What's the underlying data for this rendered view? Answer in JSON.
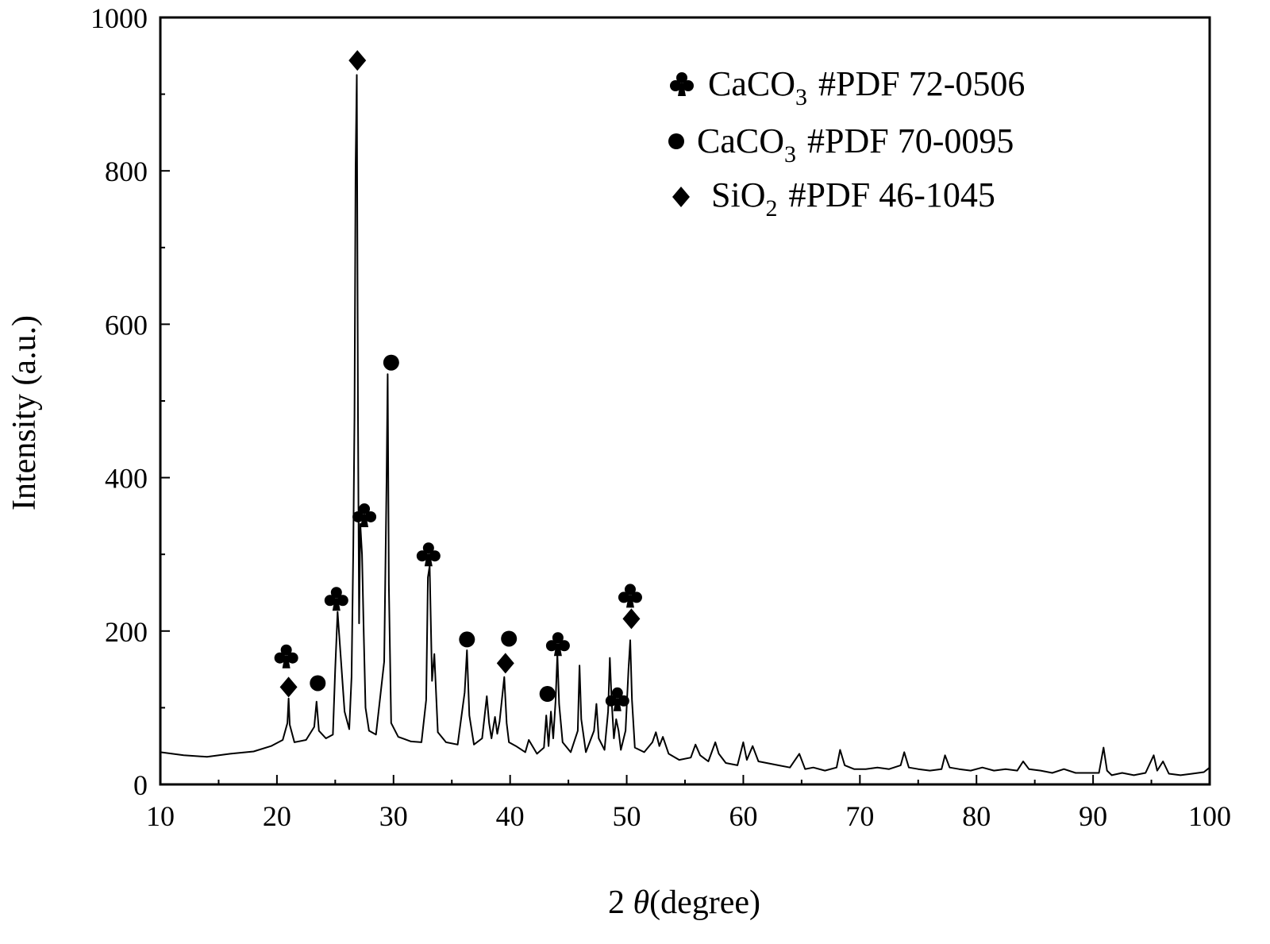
{
  "chart_data": {
    "type": "line",
    "title": "",
    "xlabel_prefix": "2 ",
    "xlabel_symbol": "θ",
    "xlabel_suffix": "(degree)",
    "ylabel": "Intensity (a.u.)",
    "xlim": [
      10,
      100
    ],
    "ylim": [
      0,
      1000
    ],
    "xticks": [
      10,
      20,
      30,
      40,
      50,
      60,
      70,
      80,
      90,
      100
    ],
    "yticks": [
      0,
      200,
      400,
      600,
      800,
      1000
    ],
    "grid": false,
    "legend_placement": "top-right",
    "line_color": "#000000",
    "legend": [
      {
        "marker": "club",
        "formula": "CaCO",
        "subscript": "3",
        "pdf": "#PDF 72-0506"
      },
      {
        "marker": "circle",
        "formula": "CaCO",
        "subscript": "3",
        "pdf": "#PDF 70-0095"
      },
      {
        "marker": "diamond",
        "formula": "SiO",
        "subscript": "2",
        "pdf": "#PDF 46-1045"
      }
    ],
    "series": [
      {
        "x": [
          10,
          12,
          14,
          16,
          18,
          19.5,
          20.5,
          20.9,
          21.0,
          21.1,
          21.5,
          22.5,
          23.2,
          23.4,
          23.6,
          24.2,
          24.8,
          25.0,
          25.2,
          25.8,
          26.2,
          26.4,
          26.55,
          26.65,
          26.75,
          26.85,
          26.95,
          27.05,
          27.15,
          27.3,
          27.45,
          27.6,
          27.9,
          28.5,
          29.2,
          29.4,
          29.5,
          29.6,
          29.8,
          30.4,
          31.5,
          32.4,
          32.8,
          32.95,
          33.1,
          33.3,
          33.5,
          33.8,
          34.5,
          35.5,
          36.1,
          36.3,
          36.5,
          36.9,
          37.6,
          38.0,
          38.2,
          38.4,
          38.7,
          38.9,
          39.1,
          39.5,
          39.7,
          39.9,
          40.5,
          41.3,
          41.6,
          42.3,
          42.9,
          43.1,
          43.3,
          43.5,
          43.7,
          43.9,
          44.05,
          44.2,
          44.5,
          45.2,
          45.8,
          45.95,
          46.1,
          46.5,
          47.2,
          47.4,
          47.6,
          48.1,
          48.4,
          48.55,
          48.7,
          48.9,
          49.1,
          49.3,
          49.5,
          49.9,
          50.15,
          50.3,
          50.45,
          50.7,
          51.5,
          52.2,
          52.5,
          52.8,
          53.1,
          53.6,
          54.5,
          55.5,
          55.9,
          56.3,
          57.0,
          57.6,
          57.9,
          58.5,
          59.5,
          60.0,
          60.3,
          60.8,
          61.3,
          62.0,
          63.0,
          64.0,
          64.8,
          65.3,
          66.0,
          67.0,
          68.0,
          68.3,
          68.7,
          69.5,
          70.5,
          71.5,
          72.5,
          73.5,
          73.8,
          74.2,
          75.0,
          76.0,
          77.0,
          77.3,
          77.7,
          78.5,
          79.5,
          80.5,
          81.5,
          82.5,
          83.5,
          84.0,
          84.5,
          85.5,
          86.5,
          87.5,
          88.5,
          89.5,
          90.5,
          90.9,
          91.2,
          91.6,
          92.5,
          93.5,
          94.5,
          95.2,
          95.5,
          96.0,
          96.5,
          97.5,
          98.5,
          99.5,
          100
        ],
        "y": [
          42,
          38,
          36,
          40,
          43,
          50,
          58,
          80,
          112,
          78,
          55,
          58,
          75,
          108,
          70,
          60,
          65,
          150,
          225,
          95,
          72,
          140,
          310,
          480,
          805,
          925,
          480,
          210,
          340,
          300,
          195,
          100,
          70,
          65,
          160,
          395,
          535,
          260,
          80,
          62,
          56,
          55,
          110,
          270,
          285,
          135,
          170,
          68,
          55,
          52,
          120,
          175,
          90,
          52,
          60,
          115,
          80,
          60,
          88,
          66,
          82,
          140,
          80,
          55,
          50,
          42,
          58,
          40,
          48,
          90,
          50,
          95,
          60,
          110,
          170,
          105,
          55,
          42,
          70,
          155,
          85,
          42,
          70,
          105,
          60,
          45,
          95,
          165,
          110,
          60,
          85,
          70,
          45,
          70,
          150,
          188,
          110,
          48,
          42,
          55,
          68,
          50,
          62,
          40,
          32,
          35,
          52,
          38,
          30,
          55,
          40,
          28,
          25,
          55,
          32,
          50,
          30,
          28,
          25,
          22,
          40,
          20,
          22,
          18,
          22,
          45,
          25,
          20,
          20,
          22,
          20,
          25,
          42,
          22,
          20,
          18,
          20,
          38,
          22,
          20,
          18,
          22,
          18,
          20,
          18,
          30,
          20,
          18,
          15,
          20,
          15,
          15,
          15,
          48,
          18,
          12,
          15,
          12,
          15,
          38,
          18,
          30,
          14,
          12,
          14,
          16,
          22
        ]
      }
    ],
    "annotations": [
      {
        "marker": "club",
        "x": 20.8,
        "y": 168
      },
      {
        "marker": "diamond",
        "x": 21.0,
        "y": 127
      },
      {
        "marker": "circle",
        "x": 23.5,
        "y": 132
      },
      {
        "marker": "club",
        "x": 25.1,
        "y": 243
      },
      {
        "marker": "diamond",
        "x": 26.9,
        "y": 944
      },
      {
        "marker": "club",
        "x": 27.5,
        "y": 352
      },
      {
        "marker": "circle",
        "x": 29.8,
        "y": 550
      },
      {
        "marker": "club",
        "x": 33.0,
        "y": 301
      },
      {
        "marker": "circle",
        "x": 36.3,
        "y": 189
      },
      {
        "marker": "diamond",
        "x": 39.6,
        "y": 158
      },
      {
        "marker": "circle",
        "x": 39.9,
        "y": 190
      },
      {
        "marker": "circle",
        "x": 43.2,
        "y": 118
      },
      {
        "marker": "club",
        "x": 44.1,
        "y": 184
      },
      {
        "marker": "club",
        "x": 49.2,
        "y": 112
      },
      {
        "marker": "club",
        "x": 50.3,
        "y": 247
      },
      {
        "marker": "diamond",
        "x": 50.4,
        "y": 216
      }
    ]
  }
}
